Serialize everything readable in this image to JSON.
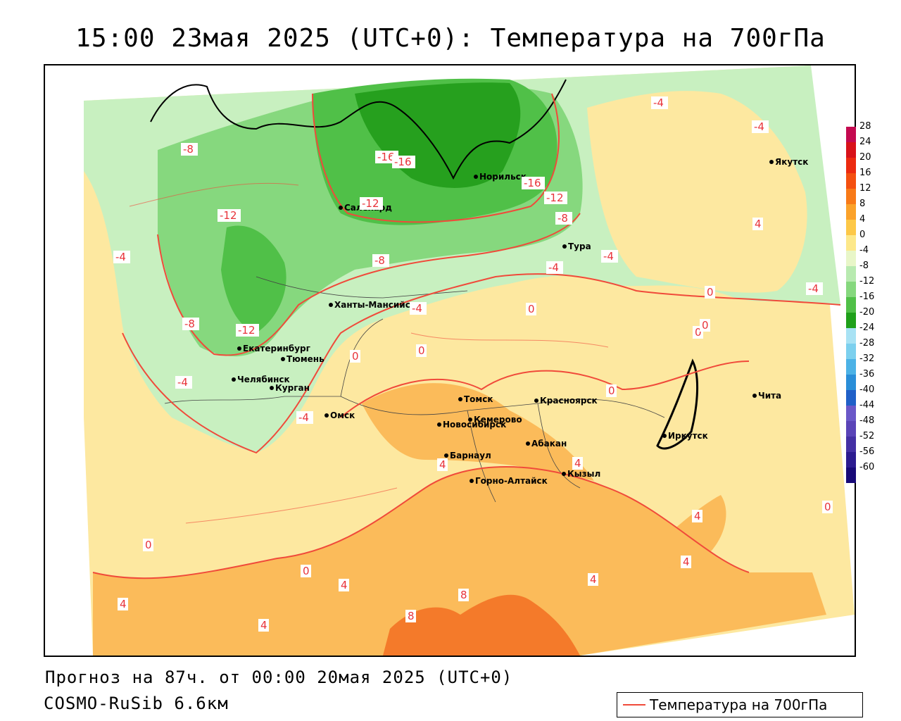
{
  "title": "15:00 23мая 2025 (UTC+0): Температура на 700гПа",
  "forecast_line": "Прогноз на 87ч. от 00:00 20мая 2025 (UTC+0)",
  "model_line": "COSMO-RuSib 6.6км",
  "legend": {
    "label": "Температура на 700гПа",
    "line_color": "#f04a3a"
  },
  "colorbar": {
    "ticks": [
      "28",
      "24",
      "20",
      "16",
      "12",
      "8",
      "4",
      "0",
      "-4",
      "-8",
      "-12",
      "-16",
      "-20",
      "-24",
      "-28",
      "-32",
      "-36",
      "-40",
      "-44",
      "-48",
      "-52",
      "-56",
      "-60"
    ],
    "colors": [
      "#c40a50",
      "#d8121a",
      "#ec2a10",
      "#f45010",
      "#f87a18",
      "#fba22a",
      "#fdc848",
      "#fde88a",
      "#e8f6c8",
      "#b8eab0",
      "#86d87e",
      "#50c048",
      "#1fa01a",
      "#a8e2f4",
      "#7cd0ee",
      "#4cb2e6",
      "#2a8ed8",
      "#2060c8",
      "#6a58c8",
      "#5a44b8",
      "#4430a4",
      "#2c1c90",
      "#180a78"
    ]
  },
  "cities": [
    {
      "name": "Норильск"
    },
    {
      "name": "Салехард"
    },
    {
      "name": "Тура"
    },
    {
      "name": "Якутск"
    },
    {
      "name": "Ханты-Мансийск"
    },
    {
      "name": "Екатеринбург"
    },
    {
      "name": "Тюмень"
    },
    {
      "name": "Челябинск"
    },
    {
      "name": "Курган"
    },
    {
      "name": "Омск"
    },
    {
      "name": "Новосибирск"
    },
    {
      "name": "Томск"
    },
    {
      "name": "Кемерово"
    },
    {
      "name": "Красноярск"
    },
    {
      "name": "Абакан"
    },
    {
      "name": "Барнаул"
    },
    {
      "name": "Горно-Алтайск"
    },
    {
      "name": "Кызыл"
    },
    {
      "name": "Иркутск"
    },
    {
      "name": "Чита"
    }
  ],
  "isotherm_labels": [
    "-16",
    "-16",
    "-16",
    "-12",
    "-12",
    "-12",
    "-12",
    "-8",
    "-8",
    "-8",
    "-8",
    "-4",
    "-4",
    "-4",
    "-4",
    "-4",
    "-4",
    "-4",
    "-4",
    "-4",
    "0",
    "0",
    "0",
    "0",
    "0",
    "0",
    "0",
    "0",
    "0",
    "0",
    "4",
    "4",
    "4",
    "4",
    "4",
    "4",
    "4",
    "4",
    "4",
    "8",
    "8"
  ]
}
